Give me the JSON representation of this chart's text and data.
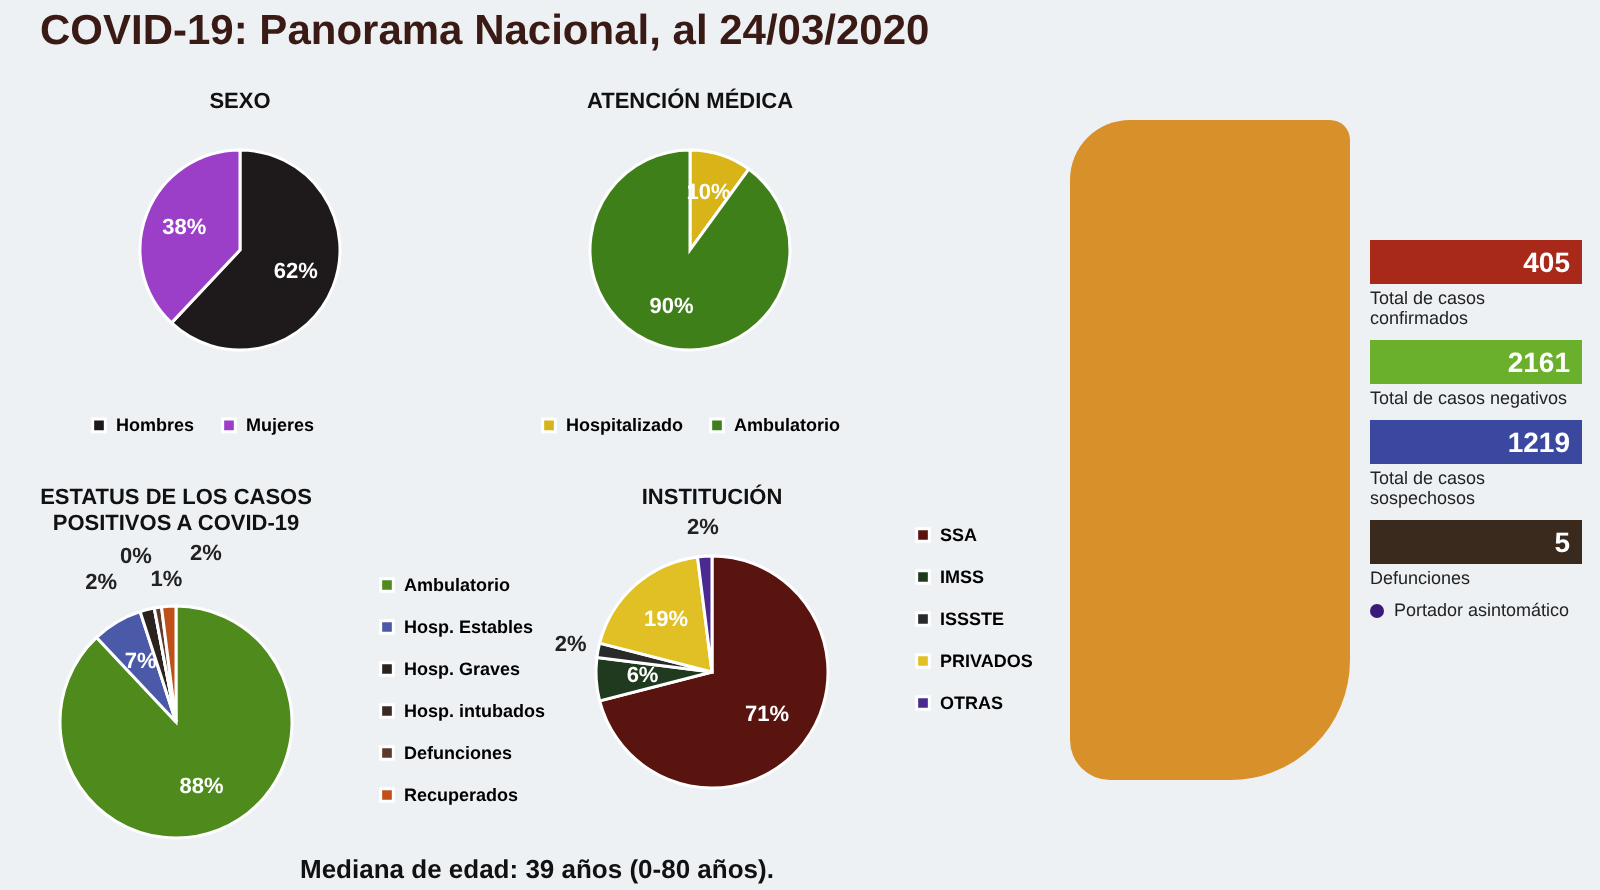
{
  "chart_data": [
    {
      "type": "pie",
      "title": "SEXO",
      "categories": [
        "Hombres",
        "Mujeres"
      ],
      "values": [
        62,
        38
      ],
      "colors": [
        "#1e1a1c",
        "#9b3fc8"
      ],
      "value_labels": [
        "62%",
        "38%"
      ],
      "legend": "bottom"
    },
    {
      "type": "pie",
      "title": "ATENCIÓN MÉDICA",
      "categories": [
        "Hospitalizado",
        "Ambulatorio"
      ],
      "values": [
        10,
        90
      ],
      "colors": [
        "#d8b418",
        "#3f7f1a"
      ],
      "value_labels": [
        "10%",
        "90%"
      ],
      "legend": "bottom"
    },
    {
      "type": "pie",
      "title": "ESTATUS DE LOS CASOS POSITIVOS A COVID-19",
      "categories": [
        "Ambulatorio",
        "Hosp. Estables",
        "Hosp. Graves",
        "Hosp. intubados",
        "Defunciones",
        "Recuperados"
      ],
      "values": [
        88,
        7,
        2,
        0,
        1,
        2
      ],
      "colors": [
        "#4f8a1c",
        "#4a5aa8",
        "#2a2320",
        "#3a2a22",
        "#5a3a2a",
        "#c0501a"
      ],
      "value_labels": [
        "88%",
        "7%",
        "2%",
        "0%",
        "1%",
        "2%"
      ],
      "legend": "right"
    },
    {
      "type": "pie",
      "title": "INSTITUCIÓN",
      "categories": [
        "SSA",
        "IMSS",
        "ISSSTE",
        "PRIVADOS",
        "OTRAS"
      ],
      "values": [
        71,
        6,
        2,
        19,
        2
      ],
      "colors": [
        "#5a1410",
        "#1f3a1f",
        "#2a2a2a",
        "#e0c024",
        "#4a2a90"
      ],
      "value_labels": [
        "71%",
        "6%",
        "2%",
        "19%",
        "2%"
      ],
      "legend": "right"
    },
    {
      "type": "other",
      "title": "COVID-19: Panorama Nacional, al 24/03/2020",
      "annotations": [
        "405",
        "Total de casos confirmados",
        "2161",
        "Total de casos negativos",
        "1219",
        "Total de casos sospechosos",
        "5",
        "Defunciones",
        "Portador asintomático",
        "Mediana de edad: 39 años (0-80 años)."
      ]
    }
  ]
}
